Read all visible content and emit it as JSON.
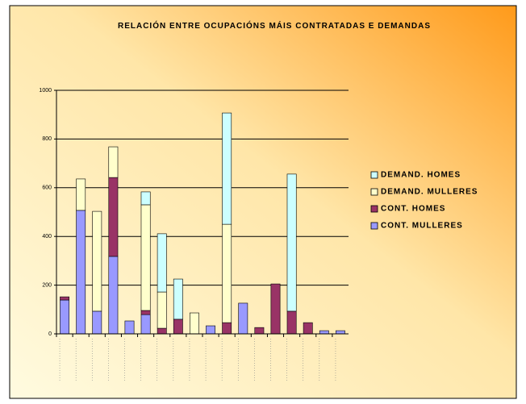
{
  "chart_data": {
    "type": "stacked_bar",
    "title": "RELACIÓN ENTRE OCUPACIÓNS MÁIS CONTRATADAS E DEMANDAS",
    "categories": [
      null,
      null,
      null,
      null,
      null,
      null,
      null,
      null,
      null,
      null,
      null,
      null,
      null,
      null,
      null,
      null,
      null,
      null
    ],
    "series": [
      {
        "name": "CONT. MULLERES",
        "color": "#9999ff",
        "values": [
          139,
          507,
          93,
          318,
          53,
          79,
          0,
          0,
          0,
          33,
          0,
          126,
          0,
          0,
          0,
          0,
          13,
          13
        ]
      },
      {
        "name": "CONT. HOMES",
        "color": "#993366",
        "values": [
          13,
          0,
          0,
          324,
          0,
          17,
          23,
          60,
          0,
          0,
          46,
          0,
          26,
          205,
          93,
          46,
          0,
          0
        ]
      },
      {
        "name": "DEMAND. MULLERES",
        "color": "#ffffcc",
        "values": [
          0,
          129,
          410,
          126,
          0,
          434,
          149,
          0,
          86,
          0,
          404,
          0,
          0,
          0,
          0,
          0,
          0,
          0
        ]
      },
      {
        "name": "DEMAND. HOMES",
        "color": "#ccffff",
        "values": [
          0,
          0,
          0,
          0,
          0,
          53,
          239,
          165,
          0,
          0,
          457,
          0,
          0,
          0,
          563,
          0,
          0,
          0
        ]
      }
    ],
    "ylim": [
      0,
      1000
    ],
    "yticks": [
      0,
      200,
      400,
      600,
      800,
      1000
    ],
    "grid": true,
    "legend": "right"
  }
}
